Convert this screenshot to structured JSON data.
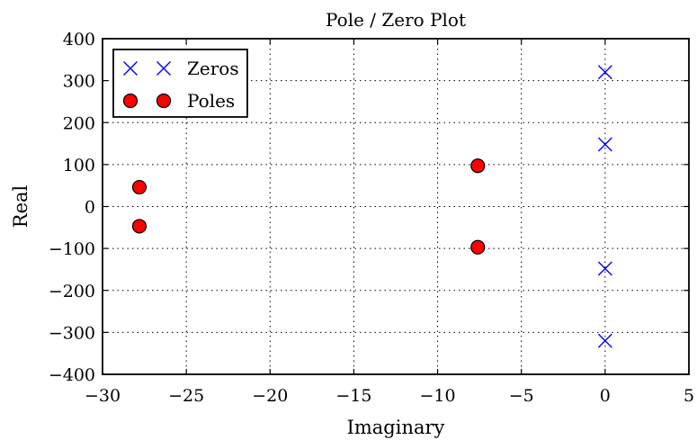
{
  "chart_data": {
    "type": "scatter",
    "title": "Pole / Zero Plot",
    "xlabel": "Imaginary",
    "ylabel": "Real",
    "xlim": [
      -30,
      5
    ],
    "ylim": [
      -400,
      400
    ],
    "xticks": [
      -30,
      -25,
      -20,
      -15,
      -10,
      -5,
      0,
      5
    ],
    "yticks": [
      -400,
      -300,
      -200,
      -100,
      0,
      100,
      200,
      300,
      400
    ],
    "xtick_labels": [
      "−30",
      "−25",
      "−20",
      "−15",
      "−10",
      "−5",
      "0",
      "5"
    ],
    "ytick_labels": [
      "−400",
      "−300",
      "−200",
      "−100",
      "0",
      "100",
      "200",
      "300",
      "400"
    ],
    "grid": true,
    "legend_position": "top-left",
    "series": [
      {
        "name": "Zeros",
        "marker": "x",
        "color": "#0000ff",
        "points": [
          [
            0,
            320
          ],
          [
            0,
            148
          ],
          [
            0,
            -148
          ],
          [
            0,
            -320
          ]
        ]
      },
      {
        "name": "Poles",
        "marker": "circle",
        "color": "#ff0000",
        "edge_color": "#000000",
        "points": [
          [
            -27.8,
            46
          ],
          [
            -27.8,
            -47
          ],
          [
            -7.6,
            97
          ],
          [
            -7.6,
            -97
          ]
        ]
      }
    ]
  }
}
